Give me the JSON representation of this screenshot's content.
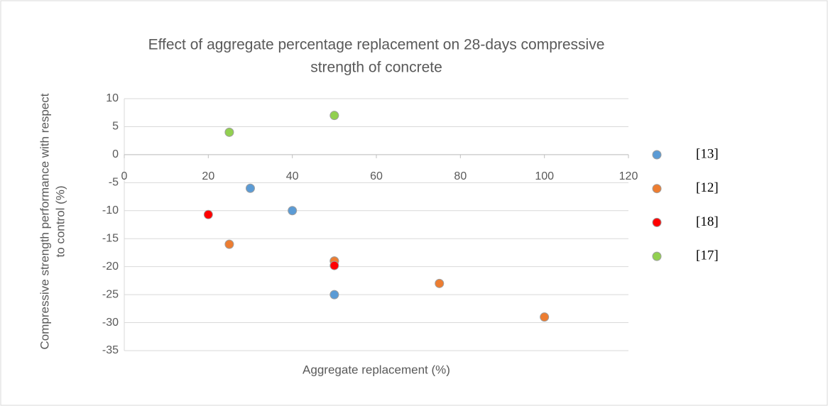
{
  "chart_data": {
    "type": "scatter",
    "title": [
      "Effect of aggregate percentage replacement on 28-days compressive",
      "strength  of concrete"
    ],
    "x_label": "Aggregate replacement (%)",
    "y_label": [
      "Compressive strength performance with respect",
      "to control (%)"
    ],
    "xlim": [
      0,
      120
    ],
    "xticks": [
      0,
      20,
      40,
      60,
      80,
      100,
      120
    ],
    "ylim": [
      -35,
      10
    ],
    "yticks": [
      -35,
      -30,
      -25,
      -20,
      -15,
      -10,
      -5,
      0,
      5,
      10
    ],
    "grid": true,
    "legend": "right",
    "series": [
      {
        "name": "[13]",
        "color": "#5b9bd5",
        "x": [
          30,
          40,
          50,
          50
        ],
        "values": [
          -6,
          -10,
          -25,
          -19
        ]
      },
      {
        "name": "[12]",
        "color": "#ed7d31",
        "x": [
          25,
          50,
          75,
          100
        ],
        "values": [
          -16,
          -19,
          -23,
          -29
        ]
      },
      {
        "name": "[18]",
        "color": "#ff0000",
        "x": [
          20,
          50
        ],
        "values": [
          -10.7,
          -19.8
        ]
      },
      {
        "name": "[17]",
        "color": "#92d050",
        "x": [
          25,
          50
        ],
        "values": [
          4,
          7
        ]
      }
    ]
  }
}
